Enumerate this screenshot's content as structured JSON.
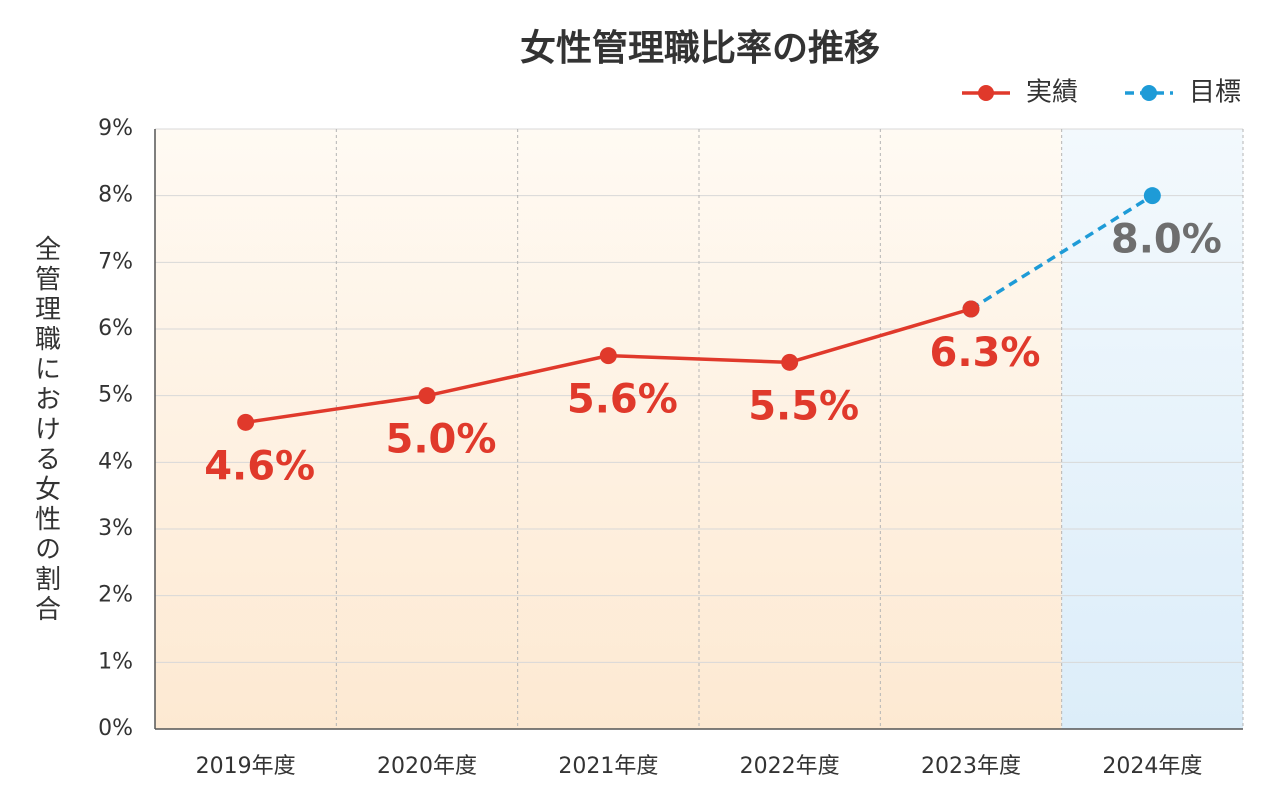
{
  "chart_data": {
    "type": "line",
    "title": "女性管理職比率の推移",
    "y_label": "全管理職における女性の割合",
    "categories": [
      "2019年度",
      "2020年度",
      "2021年度",
      "2022年度",
      "2023年度",
      "2024年度"
    ],
    "series": [
      {
        "name": "実績",
        "color": "#e0392b",
        "dashed": false,
        "label_color": "#e0392b",
        "values": [
          4.6,
          5.0,
          5.6,
          5.5,
          6.3,
          null
        ],
        "value_labels": [
          "4.6%",
          "5.0%",
          "5.6%",
          "5.5%",
          "6.3%",
          null
        ]
      },
      {
        "name": "目標",
        "color": "#1e9bd7",
        "dashed": true,
        "label_color": "#6e6e6e",
        "values": [
          null,
          null,
          null,
          null,
          6.3,
          8.0
        ],
        "value_labels": [
          null,
          null,
          null,
          null,
          null,
          "8.0%"
        ]
      }
    ],
    "ylim": [
      0,
      9
    ],
    "yticks": [
      {
        "value": 0,
        "label": "0%"
      },
      {
        "value": 1,
        "label": "1%"
      },
      {
        "value": 2,
        "label": "2%"
      },
      {
        "value": 3,
        "label": "3%"
      },
      {
        "value": 4,
        "label": "4%"
      },
      {
        "value": 5,
        "label": "5%"
      },
      {
        "value": 6,
        "label": "6%"
      },
      {
        "value": 7,
        "label": "7%"
      },
      {
        "value": 8,
        "label": "8%"
      },
      {
        "value": 9,
        "label": "9%"
      }
    ],
    "grid": true,
    "legend": "top-right"
  }
}
